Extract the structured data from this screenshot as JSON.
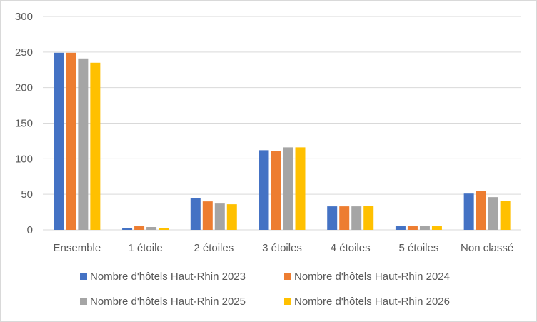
{
  "chart_data": {
    "type": "bar",
    "title": "",
    "xlabel": "",
    "ylabel": "",
    "ylim": [
      0,
      300
    ],
    "yticks": [
      0,
      50,
      100,
      150,
      200,
      250,
      300
    ],
    "grid": true,
    "legend_position": "bottom",
    "categories": [
      "Ensemble",
      "1 étoile",
      "2 étoiles",
      "3 étoiles",
      "4 étoiles",
      "5 étoiles",
      "Non classé"
    ],
    "series": [
      {
        "name": "Nombre d'hôtels Haut-Rhin 2023",
        "color": "#4472c4",
        "values": [
          249,
          3,
          45,
          112,
          33,
          5,
          51
        ]
      },
      {
        "name": "Nombre d'hôtels Haut-Rhin 2024",
        "color": "#ed7d31",
        "values": [
          249,
          5,
          40,
          111,
          33,
          5,
          55
        ]
      },
      {
        "name": "Nombre d'hôtels Haut-Rhin 2025",
        "color": "#a5a5a5",
        "values": [
          241,
          4,
          37,
          116,
          33,
          5,
          46
        ]
      },
      {
        "name": "Nombre d'hôtels Haut-Rhin 2026",
        "color": "#ffc000",
        "values": [
          235,
          3,
          36,
          116,
          34,
          5,
          41
        ]
      }
    ]
  }
}
